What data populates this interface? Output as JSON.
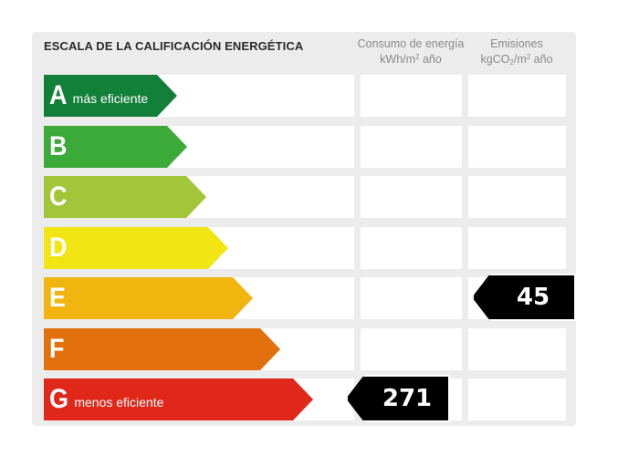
{
  "title": "ESCALA DE LA CALIFICACIÓN ENERGÉTICA",
  "columns": {
    "consumo": {
      "line1": "Consumo de energía",
      "line2_pre": "kWh/m",
      "line2_sup": "2",
      "line2_post": " año"
    },
    "emisiones": {
      "line1": "Emisiones",
      "line2_pre": "kgCO",
      "line2_sub": "2",
      "line2_mid": "/m",
      "line2_sup": "2",
      "line2_post": " año"
    }
  },
  "ratings": [
    {
      "letter": "A",
      "label": "más eficiente",
      "color": "#13803a"
    },
    {
      "letter": "B",
      "label": "",
      "color": "#3caa39"
    },
    {
      "letter": "C",
      "label": "",
      "color": "#a2c53a"
    },
    {
      "letter": "D",
      "label": "",
      "color": "#f1e514"
    },
    {
      "letter": "E",
      "label": "",
      "color": "#f2b50f"
    },
    {
      "letter": "F",
      "label": "",
      "color": "#e2710d"
    },
    {
      "letter": "G",
      "label": "menos eficiente",
      "color": "#e0281a"
    }
  ],
  "result": {
    "consumo": {
      "value": "271",
      "rating": "G"
    },
    "emisiones": {
      "value": "45",
      "rating": "E"
    }
  }
}
